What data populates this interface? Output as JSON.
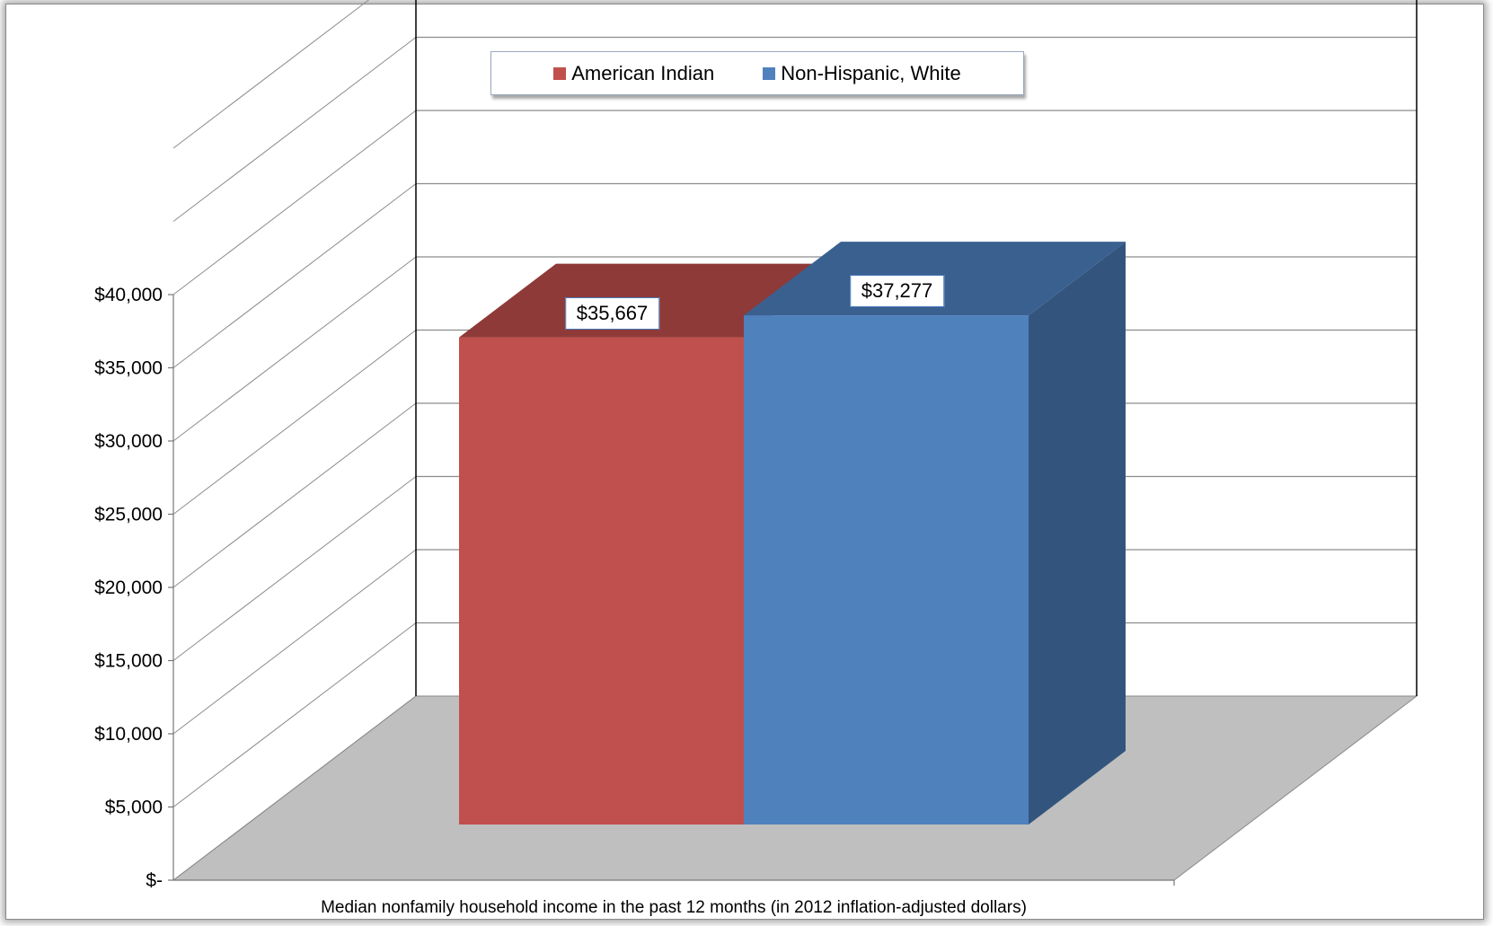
{
  "chart_data": {
    "type": "bar",
    "categories": [
      "Median nonfamily household income in the past 12 months (in 2012 inflation-adjusted dollars)"
    ],
    "series": [
      {
        "name": "American Indian",
        "values": [
          35667
        ],
        "label": "$35,667",
        "color": "#c0504d",
        "top_color": "#8e3a38"
      },
      {
        "name": "Non-Hispanic, White",
        "values": [
          37277
        ],
        "label": "$37,277",
        "color": "#4f81bd",
        "top_color": "#3a6090",
        "side_color": "#33557d"
      }
    ],
    "yticks": [
      {
        "value": 0,
        "label": "$-"
      },
      {
        "value": 5000,
        "label": "$5,000"
      },
      {
        "value": 10000,
        "label": "$10,000"
      },
      {
        "value": 15000,
        "label": "$15,000"
      },
      {
        "value": 20000,
        "label": "$20,000"
      },
      {
        "value": 25000,
        "label": "$25,000"
      },
      {
        "value": 30000,
        "label": "$30,000"
      },
      {
        "value": 35000,
        "label": "$35,000"
      },
      {
        "value": 40000,
        "label": "$40,000"
      }
    ],
    "ylim": [
      0,
      40000
    ],
    "xlabel": "Median nonfamily household income in the past 12 months (in 2012 inflation-adjusted dollars)",
    "legend_position": "top-center",
    "grid": true,
    "floor_color": "#bfbfbf",
    "style": "3d-column"
  }
}
